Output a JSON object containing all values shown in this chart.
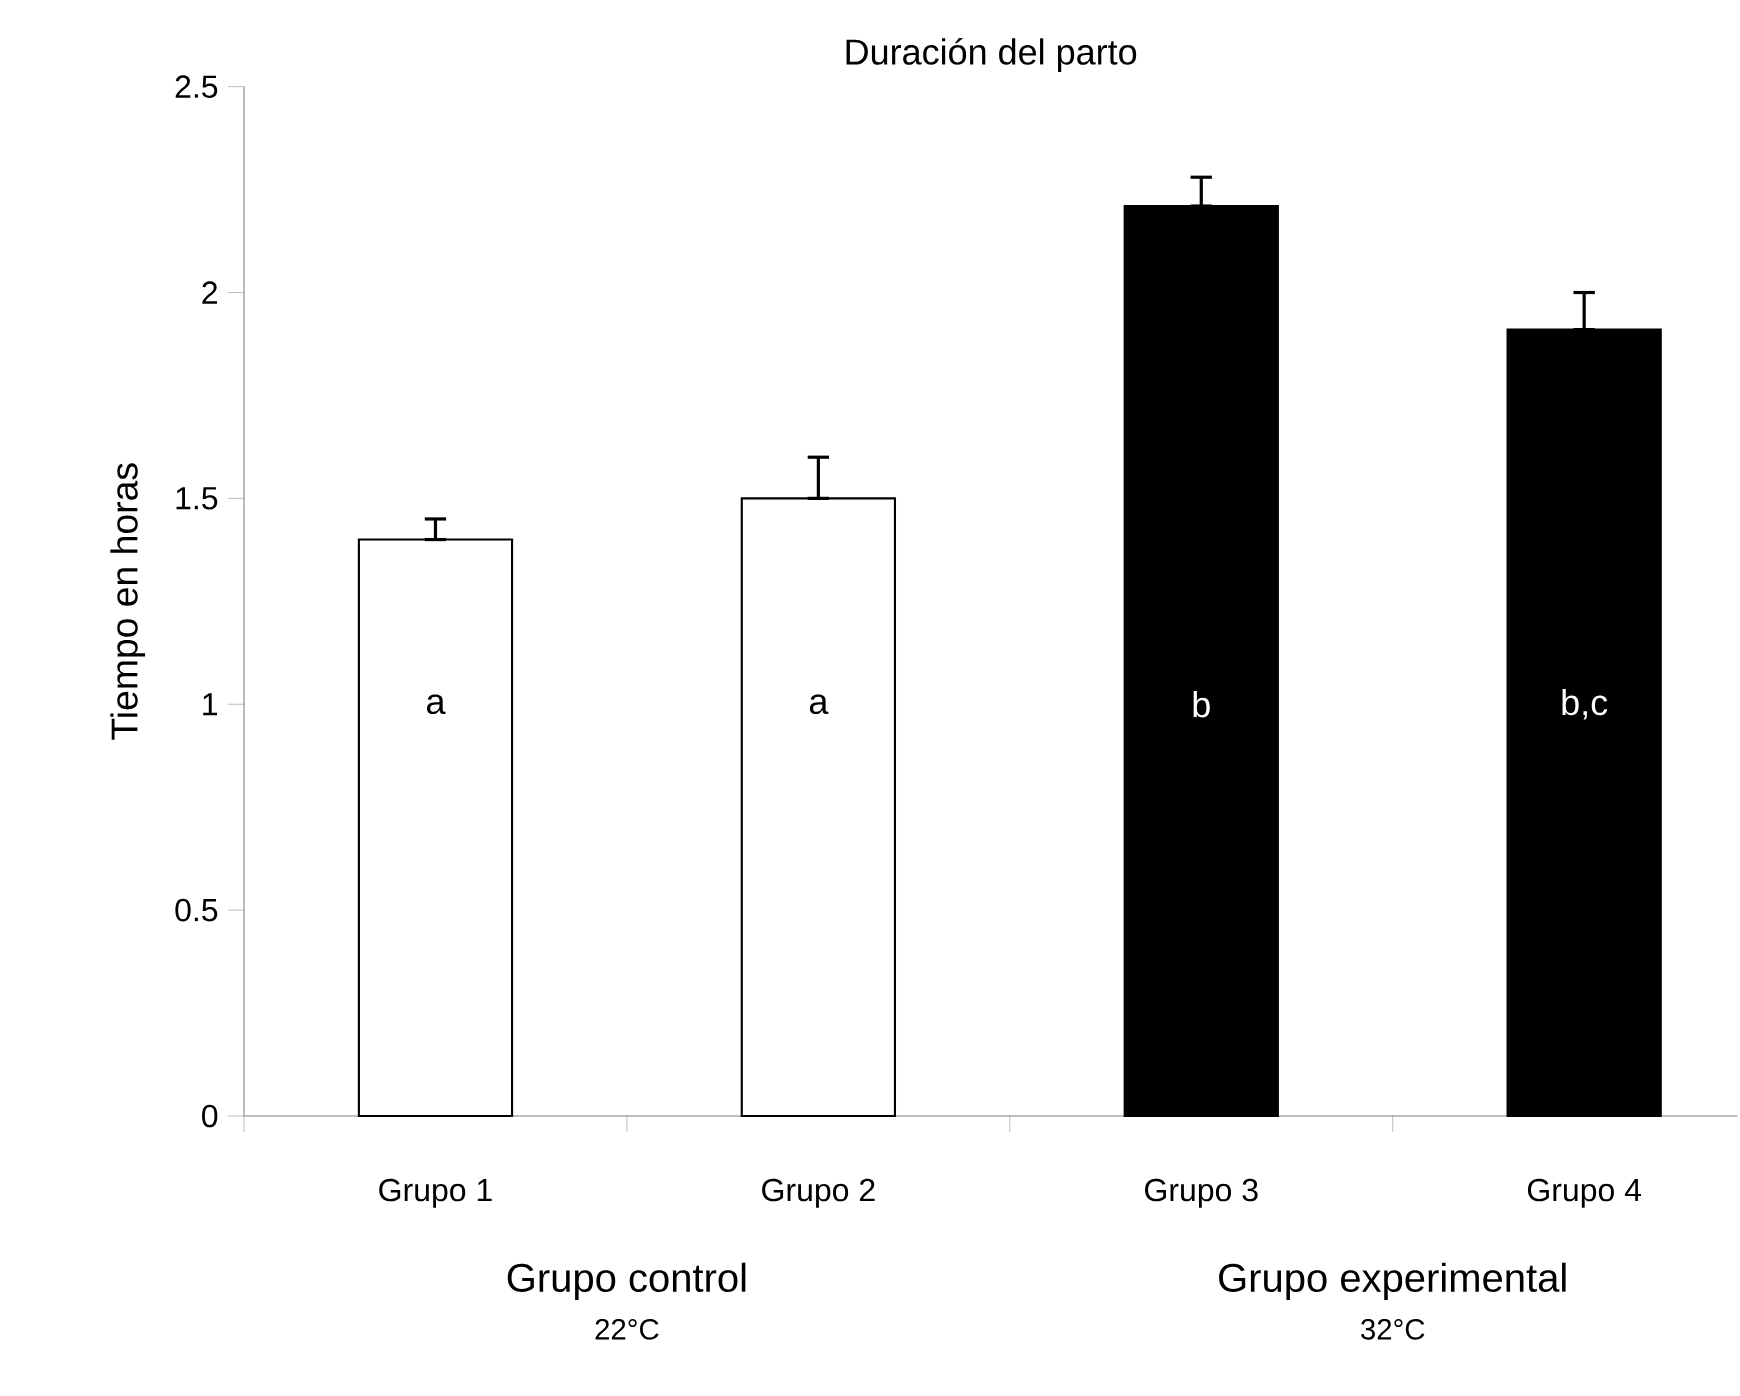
{
  "chart_data": {
    "type": "bar",
    "title": "Duración del parto",
    "ylabel": "Tiempo en horas",
    "categories": [
      "Grupo 1",
      "Grupo 2",
      "Grupo 3",
      "Grupo 4"
    ],
    "values": [
      1.4,
      1.5,
      2.21,
      1.91
    ],
    "colors": [
      "#ffffff",
      "#ffffff",
      "#000000",
      "#000000"
    ],
    "errors": [
      [
        1.4,
        1.45
      ],
      [
        1.5,
        1.6
      ],
      [
        2.21,
        2.28
      ],
      [
        1.91,
        2.0
      ]
    ],
    "ylim": [
      0,
      2.5
    ],
    "yticks": [
      0,
      0.5,
      1,
      1.5,
      2,
      2.5
    ],
    "grid": false,
    "annotations": [
      "a",
      "a",
      "b",
      "b,c",
      "Grupo control",
      "22°C",
      "Grupo experimental",
      "32°C"
    ]
  }
}
